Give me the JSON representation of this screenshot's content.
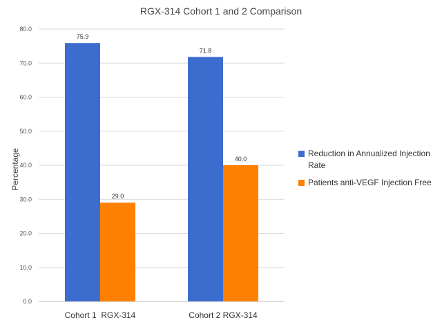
{
  "chart_data": {
    "type": "bar",
    "title": "RGX-314 Cohort 1 and 2 Comparison",
    "xlabel": "",
    "ylabel": "Percentage",
    "categories": [
      "Cohort 1  RGX-314",
      "Cohort 2 RGX-314"
    ],
    "series": [
      {
        "name": "Reduction in Annualized Injection Rate",
        "values": [
          75.9,
          71.8
        ],
        "color": "#3d6ccf"
      },
      {
        "name": "Patients anti-VEGF Injection Free",
        "values": [
          29.0,
          40.0
        ],
        "color": "#ff7f00"
      }
    ],
    "data_labels": [
      [
        "75.9",
        "71.8"
      ],
      [
        "29.0",
        "40.0"
      ]
    ],
    "ylim": [
      0,
      80
    ],
    "y_ticks": [
      "0.0",
      "10.0",
      "20.0",
      "30.0",
      "40.0",
      "50.0",
      "60.0",
      "70.0",
      "80.0"
    ],
    "grid": true,
    "legend_position": "right"
  }
}
